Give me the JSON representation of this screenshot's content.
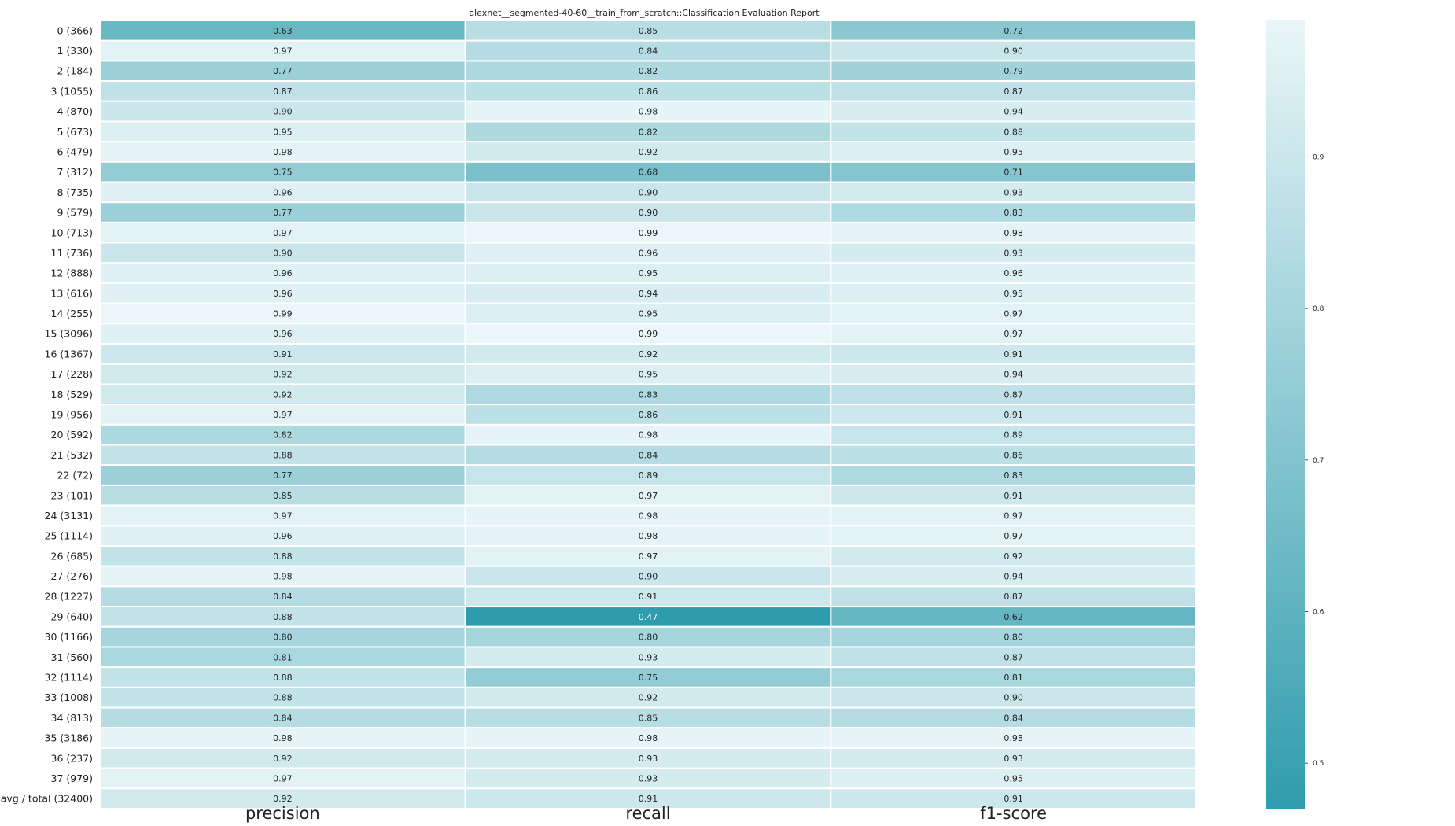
{
  "chart_data": {
    "type": "heatmap",
    "title": "alexnet__segmented-40-60__train_from_scratch::Classification Evaluation Report",
    "columns": [
      "precision",
      "recall",
      "f1-score"
    ],
    "rows": [
      "0 (366)",
      "1 (330)",
      "2 (184)",
      "3 (1055)",
      "4 (870)",
      "5 (673)",
      "6 (479)",
      "7 (312)",
      "8 (735)",
      "9 (579)",
      "10 (713)",
      "11 (736)",
      "12 (888)",
      "13 (616)",
      "14 (255)",
      "15 (3096)",
      "16 (1367)",
      "17 (228)",
      "18 (529)",
      "19 (956)",
      "20 (592)",
      "21 (532)",
      "22 (72)",
      "23 (101)",
      "24 (3131)",
      "25 (1114)",
      "26 (685)",
      "27 (276)",
      "28 (1227)",
      "29 (640)",
      "30 (1166)",
      "31 (560)",
      "32 (1114)",
      "33 (1008)",
      "34 (813)",
      "35 (3186)",
      "36 (237)",
      "37 (979)",
      "avg / total (32400)"
    ],
    "values": [
      [
        0.63,
        0.85,
        0.72
      ],
      [
        0.97,
        0.84,
        0.9
      ],
      [
        0.77,
        0.82,
        0.79
      ],
      [
        0.87,
        0.86,
        0.87
      ],
      [
        0.9,
        0.98,
        0.94
      ],
      [
        0.95,
        0.82,
        0.88
      ],
      [
        0.98,
        0.92,
        0.95
      ],
      [
        0.75,
        0.68,
        0.71
      ],
      [
        0.96,
        0.9,
        0.93
      ],
      [
        0.77,
        0.9,
        0.83
      ],
      [
        0.97,
        0.99,
        0.98
      ],
      [
        0.9,
        0.96,
        0.93
      ],
      [
        0.96,
        0.95,
        0.96
      ],
      [
        0.96,
        0.94,
        0.95
      ],
      [
        0.99,
        0.95,
        0.97
      ],
      [
        0.96,
        0.99,
        0.97
      ],
      [
        0.91,
        0.92,
        0.91
      ],
      [
        0.92,
        0.95,
        0.94
      ],
      [
        0.92,
        0.83,
        0.87
      ],
      [
        0.97,
        0.86,
        0.91
      ],
      [
        0.82,
        0.98,
        0.89
      ],
      [
        0.88,
        0.84,
        0.86
      ],
      [
        0.77,
        0.89,
        0.83
      ],
      [
        0.85,
        0.97,
        0.91
      ],
      [
        0.97,
        0.98,
        0.97
      ],
      [
        0.96,
        0.98,
        0.97
      ],
      [
        0.88,
        0.97,
        0.92
      ],
      [
        0.98,
        0.9,
        0.94
      ],
      [
        0.84,
        0.91,
        0.87
      ],
      [
        0.88,
        0.47,
        0.62
      ],
      [
        0.8,
        0.8,
        0.8
      ],
      [
        0.81,
        0.93,
        0.87
      ],
      [
        0.88,
        0.75,
        0.81
      ],
      [
        0.88,
        0.92,
        0.9
      ],
      [
        0.84,
        0.85,
        0.84
      ],
      [
        0.98,
        0.98,
        0.98
      ],
      [
        0.92,
        0.93,
        0.93
      ],
      [
        0.97,
        0.93,
        0.95
      ],
      [
        0.92,
        0.91,
        0.91
      ]
    ],
    "value_format": "2 decimals",
    "colorbar": {
      "ticks": [
        0.5,
        0.6,
        0.7,
        0.8,
        0.9
      ],
      "range": [
        0.47,
        0.99
      ],
      "color_low": "#2f9cad",
      "color_high": "#eaf6f8"
    },
    "grid": false
  }
}
